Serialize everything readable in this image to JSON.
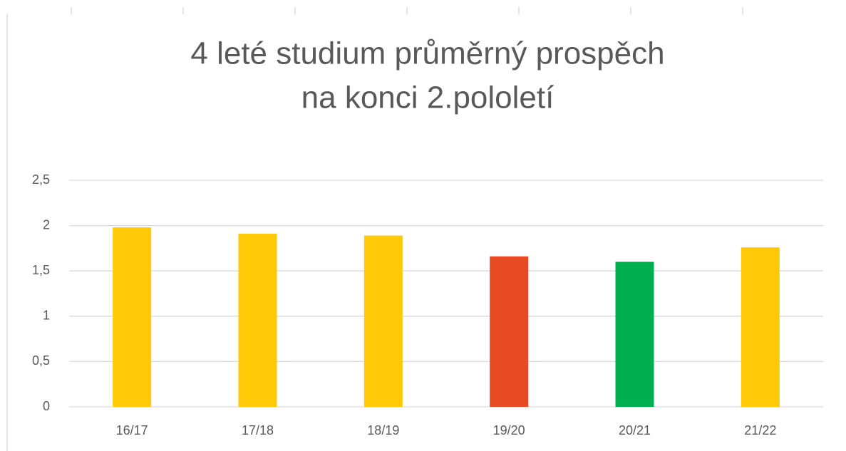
{
  "chart_data": {
    "type": "bar",
    "title": [
      "4 leté  studium průměrný prospěch",
      "na konci 2.pololetí"
    ],
    "categories": [
      "16/17",
      "17/18",
      "18/19",
      "19/20",
      "20/21",
      "21/22"
    ],
    "values": [
      1.98,
      1.91,
      1.89,
      1.66,
      1.6,
      1.76
    ],
    "colors": [
      "#ffc907",
      "#ffc907",
      "#ffc907",
      "#e84a23",
      "#00b050",
      "#ffc907"
    ],
    "ylim": [
      0,
      2.5
    ],
    "yticks": [
      0,
      {
        "value": 0.5,
        "label": "0,5"
      },
      1,
      {
        "value": 1.5,
        "label": "1,5"
      },
      2,
      {
        "value": 2.5,
        "label": "2,5"
      }
    ],
    "grid": true
  }
}
